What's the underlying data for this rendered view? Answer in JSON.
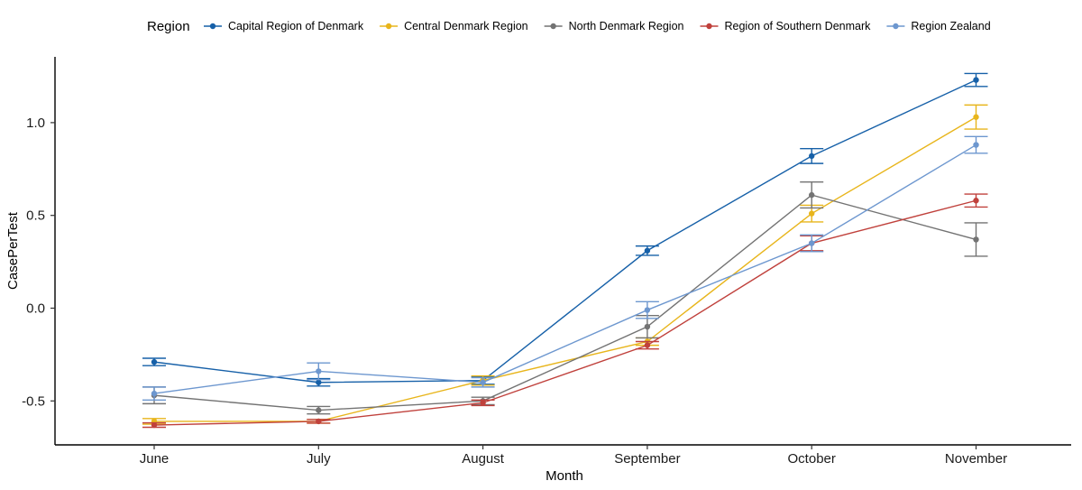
{
  "chart_data": {
    "type": "line",
    "xlabel": "Month",
    "ylabel": "CasePerTest",
    "categories": [
      "June",
      "July",
      "August",
      "September",
      "October",
      "November"
    ],
    "ylim": [
      -0.74,
      1.37
    ],
    "yticks": [
      -0.5,
      0.0,
      0.5,
      1.0
    ],
    "ytick_labels": [
      "-0.5",
      "0.0",
      "0.5",
      "1.0"
    ],
    "legend": {
      "title": "Region",
      "position": "top"
    },
    "grid": false,
    "error_bars": true,
    "series": [
      {
        "name": "Capital Region of Denmark",
        "color": "#1660a8",
        "values": [
          -0.29,
          -0.4,
          -0.39,
          0.31,
          0.82,
          1.23
        ],
        "err": [
          0.02,
          0.02,
          0.02,
          0.025,
          0.04,
          0.035
        ]
      },
      {
        "name": "Central Denmark Region",
        "color": "#e8b51b",
        "values": [
          -0.61,
          -0.61,
          -0.39,
          -0.18,
          0.51,
          1.03
        ],
        "err": [
          0.015,
          0.01,
          0.025,
          0.02,
          0.045,
          0.065
        ]
      },
      {
        "name": "North Denmark Region",
        "color": "#737373",
        "values": [
          -0.47,
          -0.55,
          -0.5,
          -0.1,
          0.61,
          0.37
        ],
        "err": [
          0.045,
          0.02,
          0.02,
          0.06,
          0.07,
          0.09
        ]
      },
      {
        "name": "Region of Southern Denmark",
        "color": "#c0413c",
        "values": [
          -0.63,
          -0.61,
          -0.51,
          -0.2,
          0.35,
          0.58
        ],
        "err": [
          0.012,
          0.01,
          0.015,
          0.02,
          0.04,
          0.035
        ]
      },
      {
        "name": "Region Zealand",
        "color": "#6d97cf",
        "values": [
          -0.46,
          -0.34,
          -0.4,
          -0.01,
          0.35,
          0.88
        ],
        "err": [
          0.035,
          0.045,
          0.025,
          0.045,
          0.045,
          0.045
        ]
      }
    ]
  }
}
